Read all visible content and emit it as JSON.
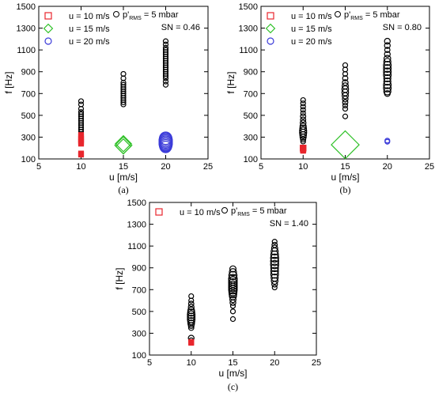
{
  "chart_data": [
    {
      "type": "scatter",
      "panel_label": "(a)",
      "xlabel": "u [m/s]",
      "ylabel": "f [Hz]",
      "xlim": [
        5,
        25
      ],
      "ylim": [
        100,
        1500
      ],
      "xticks": [
        5,
        10,
        15,
        20,
        25
      ],
      "yticks": [
        100,
        300,
        500,
        700,
        900,
        1100,
        1300,
        1500
      ],
      "grid": false,
      "legend": {
        "position": "top-left",
        "items": [
          {
            "label": "u = 10 m/s",
            "marker": "square",
            "color": "#e8262d"
          },
          {
            "label": "u = 15 m/s",
            "marker": "diamond",
            "color": "#2fc128"
          },
          {
            "label": "u = 20 m/s",
            "marker": "circle",
            "color": "#3b3bd9"
          }
        ]
      },
      "annotation": {
        "reference_label_main": "p'",
        "reference_label_sub": "RMS",
        "reference_label_tail": " = 5 mbar",
        "sn": "SN = 0.46"
      },
      "series": [
        {
          "color": "#000000",
          "marker": "circle",
          "points": [
            [
              10,
              630
            ],
            [
              10,
              600
            ],
            [
              10,
              560
            ],
            [
              10,
              530
            ],
            [
              10,
              510
            ],
            [
              10,
              490
            ],
            [
              10,
              470
            ],
            [
              10,
              450
            ],
            [
              10,
              430
            ],
            [
              10,
              410
            ],
            [
              10,
              390
            ],
            [
              10,
              370
            ],
            [
              10,
              350
            ],
            [
              10,
              330
            ],
            [
              15,
              880
            ],
            [
              15,
              840
            ],
            [
              15,
              800
            ],
            [
              15,
              780
            ],
            [
              15,
              760
            ],
            [
              15,
              740
            ],
            [
              15,
              720
            ],
            [
              15,
              700
            ],
            [
              15,
              680
            ],
            [
              15,
              660
            ],
            [
              15,
              640
            ],
            [
              15,
              620
            ],
            [
              15,
              600
            ],
            [
              20,
              1180
            ],
            [
              20,
              1150
            ],
            [
              20,
              1120
            ],
            [
              20,
              1100
            ],
            [
              20,
              1080
            ],
            [
              20,
              1060
            ],
            [
              20,
              1040
            ],
            [
              20,
              1020
            ],
            [
              20,
              1000
            ],
            [
              20,
              980
            ],
            [
              20,
              960
            ],
            [
              20,
              940
            ],
            [
              20,
              920
            ],
            [
              20,
              900
            ],
            [
              20,
              880
            ],
            [
              20,
              860
            ],
            [
              20,
              840
            ],
            [
              20,
              810
            ],
            [
              20,
              780
            ]
          ],
          "sizes": [
            1,
            1,
            1,
            1,
            1,
            1,
            1,
            1,
            1,
            1,
            1,
            1,
            1,
            1,
            1,
            1,
            1,
            1,
            1,
            1,
            1,
            1,
            1,
            1,
            1,
            1,
            1,
            1,
            1,
            1,
            1,
            1,
            1,
            1,
            1,
            1,
            1,
            1,
            1,
            1,
            1,
            1,
            1,
            1,
            1,
            1
          ]
        },
        {
          "name": "u = 10 m/s",
          "color": "#e8262d",
          "marker": "square",
          "points": [
            [
              10,
              320
            ],
            [
              10,
              300
            ],
            [
              10,
              285
            ],
            [
              10,
              270
            ],
            [
              10,
              255
            ],
            [
              10,
              240
            ],
            [
              10,
              150
            ],
            [
              10,
              140
            ]
          ],
          "sizes": [
            1,
            1,
            1,
            1,
            1,
            1,
            1,
            1
          ]
        },
        {
          "name": "u = 15 m/s",
          "color": "#2fc128",
          "marker": "diamond",
          "points": [
            [
              15,
              240
            ],
            [
              15,
              225
            ],
            [
              15,
              215
            ]
          ],
          "sizes": [
            1.5,
            1.6,
            1.4
          ]
        },
        {
          "name": "u = 20 m/s",
          "color": "#3b3bd9",
          "marker": "circle",
          "points": [
            [
              20,
              290
            ],
            [
              20,
              280
            ],
            [
              20,
              270
            ],
            [
              20,
              260
            ],
            [
              20,
              250
            ],
            [
              20,
              240
            ],
            [
              20,
              230
            ],
            [
              20,
              220
            ],
            [
              20,
              210
            ]
          ],
          "sizes": [
            2.6,
            2.7,
            2.8,
            2.8,
            2.8,
            2.8,
            2.7,
            2.6,
            2.4
          ]
        }
      ]
    },
    {
      "type": "scatter",
      "panel_label": "(b)",
      "xlabel": "u [m/s]",
      "ylabel": "f [Hz]",
      "xlim": [
        5,
        25
      ],
      "ylim": [
        100,
        1500
      ],
      "xticks": [
        5,
        10,
        15,
        20,
        25
      ],
      "yticks": [
        100,
        300,
        500,
        700,
        900,
        1100,
        1300,
        1500
      ],
      "grid": false,
      "legend": {
        "position": "top-left",
        "items": [
          {
            "label": "u = 10 m/s",
            "marker": "square",
            "color": "#e8262d"
          },
          {
            "label": "u = 15 m/s",
            "marker": "diamond",
            "color": "#2fc128"
          },
          {
            "label": "u = 20 m/s",
            "marker": "circle",
            "color": "#3b3bd9"
          }
        ]
      },
      "annotation": {
        "reference_label_main": "p'",
        "reference_label_sub": "RMS",
        "reference_label_tail": " = 5 mbar",
        "sn": "SN = 0.80"
      },
      "series": [
        {
          "color": "#000000",
          "marker": "circle",
          "points": [
            [
              10,
              640
            ],
            [
              10,
              610
            ],
            [
              10,
              580
            ],
            [
              10,
              550
            ],
            [
              10,
              520
            ],
            [
              10,
              490
            ],
            [
              10,
              460
            ],
            [
              10,
              430
            ],
            [
              10,
              400
            ],
            [
              10,
              380
            ],
            [
              10,
              360
            ],
            [
              10,
              340
            ],
            [
              10,
              320
            ],
            [
              10,
              300
            ],
            [
              10,
              280
            ],
            [
              10,
              260
            ],
            [
              15,
              960
            ],
            [
              15,
              920
            ],
            [
              15,
              880
            ],
            [
              15,
              840
            ],
            [
              15,
              800
            ],
            [
              15,
              770
            ],
            [
              15,
              740
            ],
            [
              15,
              710
            ],
            [
              15,
              680
            ],
            [
              15,
              650
            ],
            [
              15,
              620
            ],
            [
              15,
              590
            ],
            [
              15,
              560
            ],
            [
              15,
              490
            ],
            [
              20,
              1180
            ],
            [
              20,
              1140
            ],
            [
              20,
              1100
            ],
            [
              20,
              1060
            ],
            [
              20,
              1020
            ],
            [
              20,
              990
            ],
            [
              20,
              960
            ],
            [
              20,
              930
            ],
            [
              20,
              900
            ],
            [
              20,
              870
            ],
            [
              20,
              840
            ],
            [
              20,
              810
            ],
            [
              20,
              780
            ],
            [
              20,
              750
            ],
            [
              20,
              720
            ],
            [
              20,
              700
            ]
          ],
          "sizes": [
            1,
            1,
            1,
            1,
            1,
            1.1,
            1.1,
            1.2,
            1.3,
            1.4,
            1.5,
            1.5,
            1.4,
            1.3,
            1.1,
            1,
            1,
            1,
            1,
            1.1,
            1.2,
            1.3,
            1.4,
            1.4,
            1.3,
            1.2,
            1.1,
            1,
            1,
            1,
            1.2,
            1.2,
            1.1,
            1.2,
            1.4,
            1.5,
            1.6,
            1.6,
            1.6,
            1.6,
            1.5,
            1.5,
            1.6,
            1.6,
            1.5,
            1.2
          ]
        },
        {
          "name": "u = 10 m/s",
          "color": "#e8262d",
          "marker": "square",
          "points": [
            [
              10,
              200
            ],
            [
              10,
              185
            ],
            [
              10,
              175
            ]
          ],
          "sizes": [
            1.2,
            1.1,
            1
          ]
        },
        {
          "name": "u = 15 m/s",
          "color": "#2fc128",
          "marker": "diamond",
          "points": [
            [
              15,
              230
            ]
          ],
          "sizes": [
            2.6
          ]
        },
        {
          "name": "u = 20 m/s",
          "color": "#3b3bd9",
          "marker": "circle",
          "points": [
            [
              20,
              268
            ],
            [
              20,
              258
            ]
          ],
          "sizes": [
            1,
            1
          ]
        }
      ]
    },
    {
      "type": "scatter",
      "panel_label": "(c)",
      "xlabel": "u [m/s]",
      "ylabel": "f [Hz]",
      "xlim": [
        5,
        25
      ],
      "ylim": [
        100,
        1500
      ],
      "xticks": [
        5,
        10,
        15,
        20,
        25
      ],
      "yticks": [
        100,
        300,
        500,
        700,
        900,
        1100,
        1300,
        1500
      ],
      "grid": false,
      "legend": {
        "position": "top-left",
        "items": [
          {
            "label": "u = 10 m/s",
            "marker": "square",
            "color": "#e8262d"
          }
        ]
      },
      "annotation": {
        "reference_label_main": "p'",
        "reference_label_sub": "RMS",
        "reference_label_tail": " = 5 mbar",
        "sn": "SN = 1.40"
      },
      "series": [
        {
          "color": "#000000",
          "marker": "circle",
          "points": [
            [
              10,
              640
            ],
            [
              10,
              600
            ],
            [
              10,
              570
            ],
            [
              10,
              540
            ],
            [
              10,
              510
            ],
            [
              10,
              490
            ],
            [
              10,
              470
            ],
            [
              10,
              450
            ],
            [
              10,
              430
            ],
            [
              10,
              410
            ],
            [
              10,
              390
            ],
            [
              10,
              370
            ],
            [
              10,
              350
            ],
            [
              10,
              255
            ],
            [
              10,
              235
            ],
            [
              15,
              890
            ],
            [
              15,
              860
            ],
            [
              15,
              830
            ],
            [
              15,
              800
            ],
            [
              15,
              780
            ],
            [
              15,
              760
            ],
            [
              15,
              740
            ],
            [
              15,
              720
            ],
            [
              15,
              700
            ],
            [
              15,
              680
            ],
            [
              15,
              660
            ],
            [
              15,
              640
            ],
            [
              15,
              610
            ],
            [
              15,
              580
            ],
            [
              15,
              550
            ],
            [
              15,
              500
            ],
            [
              15,
              430
            ],
            [
              20,
              1140
            ],
            [
              20,
              1110
            ],
            [
              20,
              1080
            ],
            [
              20,
              1050
            ],
            [
              20,
              1020
            ],
            [
              20,
              990
            ],
            [
              20,
              960
            ],
            [
              20,
              930
            ],
            [
              20,
              900
            ],
            [
              20,
              870
            ],
            [
              20,
              840
            ],
            [
              20,
              810
            ],
            [
              20,
              780
            ],
            [
              20,
              750
            ],
            [
              20,
              720
            ]
          ],
          "sizes": [
            1,
            1,
            1.1,
            1.2,
            1.4,
            1.5,
            1.6,
            1.6,
            1.6,
            1.5,
            1.4,
            1.2,
            1.1,
            1.2,
            1,
            1.3,
            1.5,
            1.7,
            1.8,
            1.8,
            1.8,
            1.8,
            1.8,
            1.8,
            1.7,
            1.6,
            1.5,
            1.3,
            1.2,
            1,
            1,
            1,
            1,
            1.1,
            1.3,
            1.5,
            1.6,
            1.7,
            1.7,
            1.7,
            1.6,
            1.6,
            1.6,
            1.5,
            1.4,
            1.2,
            1
          ]
        },
        {
          "name": "u = 10 m/s",
          "color": "#e8262d",
          "marker": "square",
          "points": [
            [
              10,
              220
            ],
            [
              10,
              212
            ]
          ],
          "sizes": [
            1,
            1
          ]
        }
      ]
    }
  ]
}
